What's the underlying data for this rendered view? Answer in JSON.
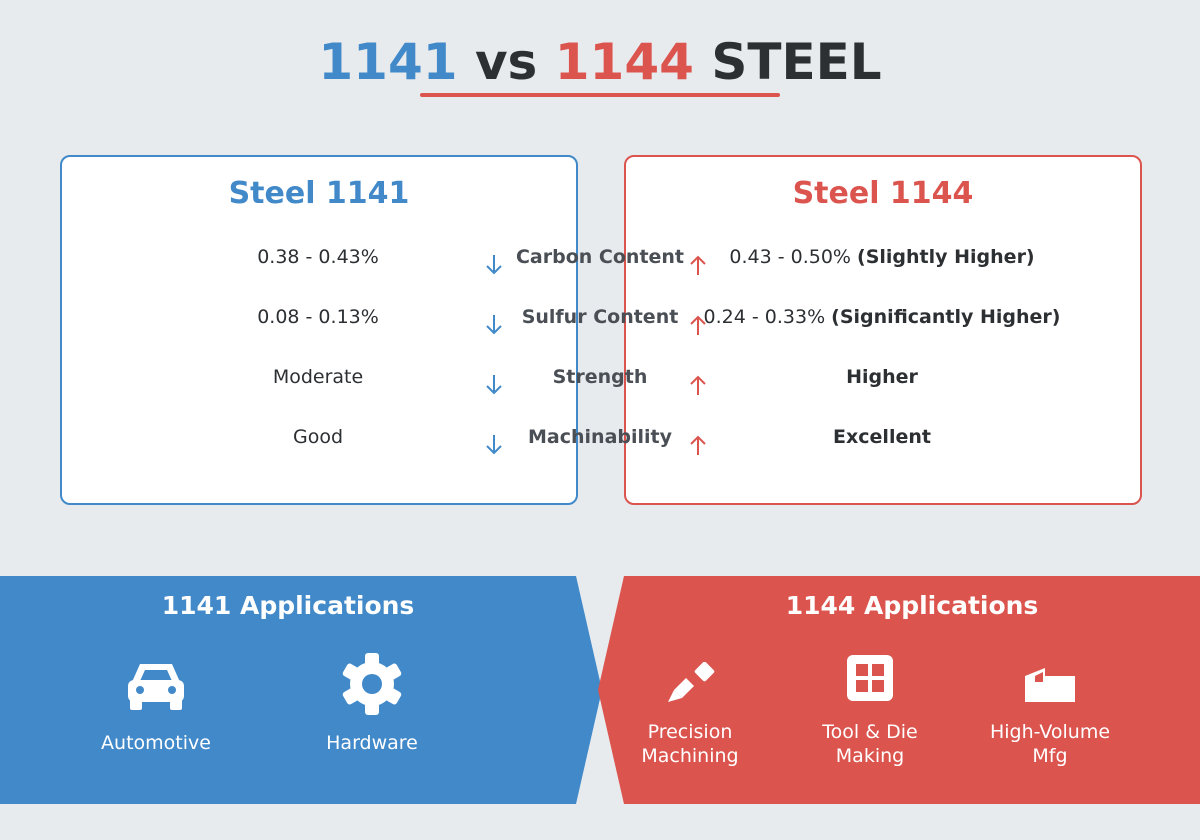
{
  "header": {
    "grade_a": "1141",
    "vs": "vs",
    "grade_b": "1144",
    "word": "STEEL"
  },
  "colors": {
    "steel_1141": "#4189c9",
    "steel_1144": "#db544e",
    "background": "#e8ebee",
    "text": "#2c3033"
  },
  "left_card": {
    "title": "Steel 1141"
  },
  "right_card": {
    "title": "Steel 1144"
  },
  "comparison": [
    {
      "property": "Carbon Content",
      "left_value": "0.38 - 0.43%",
      "right_value": "0.43 - 0.50%",
      "right_note": "(Slightly Higher)",
      "left_arrow": "arrow-down-icon",
      "right_arrow": "arrow-up-icon"
    },
    {
      "property": "Sulfur Content",
      "left_value": "0.08 - 0.13%",
      "right_value": "0.24 - 0.33%",
      "right_note": "(Significantly Higher)",
      "left_arrow": "arrow-down-icon",
      "right_arrow": "arrow-up-icon"
    },
    {
      "property": "Strength",
      "left_value": "Moderate",
      "right_value": "Higher",
      "right_note": "",
      "left_arrow": "arrow-down-icon",
      "right_arrow": "arrow-up-icon"
    },
    {
      "property": "Machinability",
      "left_value": "Good",
      "right_value": "Excellent",
      "right_note": "",
      "left_arrow": "arrow-down-icon",
      "right_arrow": "arrow-up-icon"
    }
  ],
  "applications_1141": {
    "title": "1141 Applications",
    "items": [
      {
        "icon": "car-icon",
        "label": "Automotive"
      },
      {
        "icon": "gear-icon",
        "label": "Hardware"
      }
    ]
  },
  "applications_1144": {
    "title": "1144 Applications",
    "items": [
      {
        "icon": "pen-tool-icon",
        "label_line1": "Precision",
        "label_line2": "Machining"
      },
      {
        "icon": "grid-icon",
        "label_line1": "Tool & Die",
        "label_line2": "Making"
      },
      {
        "icon": "factory-icon",
        "label_line1": "High-Volume",
        "label_line2": "Mfg"
      }
    ]
  }
}
